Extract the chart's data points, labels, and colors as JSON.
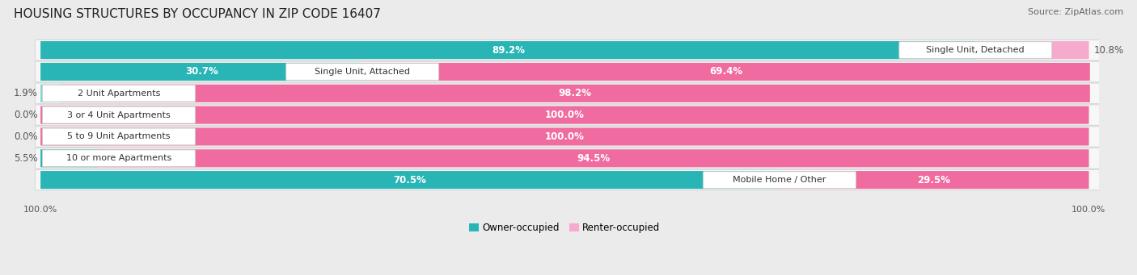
{
  "title": "HOUSING STRUCTURES BY OCCUPANCY IN ZIP CODE 16407",
  "source": "Source: ZipAtlas.com",
  "categories": [
    "Single Unit, Detached",
    "Single Unit, Attached",
    "2 Unit Apartments",
    "3 or 4 Unit Apartments",
    "5 to 9 Unit Apartments",
    "10 or more Apartments",
    "Mobile Home / Other"
  ],
  "owner_pct": [
    89.2,
    30.7,
    1.9,
    0.0,
    0.0,
    5.5,
    70.5
  ],
  "renter_pct": [
    10.8,
    69.4,
    98.2,
    100.0,
    100.0,
    94.5,
    29.5
  ],
  "owner_color_dark": "#29b5b5",
  "owner_color_light": "#7dd5d5",
  "renter_color_dark": "#f06ba0",
  "renter_color_light": "#f5aace",
  "bg_color": "#ebebeb",
  "row_bg_color": "#f7f7f7",
  "row_edge_color": "#d8d8d8",
  "title_fontsize": 11,
  "source_fontsize": 8,
  "pct_fontsize": 8.5,
  "cat_fontsize": 8,
  "tick_fontsize": 8,
  "legend_fontsize": 8.5
}
